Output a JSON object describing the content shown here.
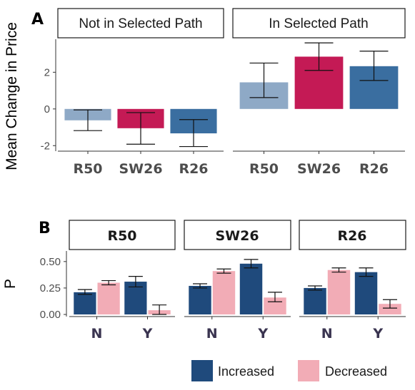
{
  "colors": {
    "R50_A": "#8ea9c6",
    "SW26_A": "#c41a55",
    "R26_A": "#3a6ea0",
    "Increased": "#1f4a7c",
    "Decreased": "#f2acb6"
  },
  "chart_data": [
    {
      "panel": "A",
      "type": "bar",
      "ylabel": "Mean Change in Price",
      "ylim": [
        -2.3,
        3.8
      ],
      "yticks": [
        -2,
        0,
        2
      ],
      "facets": [
        {
          "strip": "Not in Selected Path",
          "categories": [
            "R50",
            "SW26",
            "R26"
          ],
          "values": [
            -0.62,
            -1.05,
            -1.33
          ],
          "error_low": [
            -1.18,
            -1.92,
            -2.05
          ],
          "error_high": [
            -0.05,
            -0.2,
            -0.58
          ]
        },
        {
          "strip": "In Selected Path",
          "categories": [
            "R50",
            "SW26",
            "R26"
          ],
          "values": [
            1.45,
            2.85,
            2.33
          ],
          "error_low": [
            0.62,
            2.1,
            1.55
          ],
          "error_high": [
            2.5,
            3.6,
            3.15
          ]
        }
      ]
    },
    {
      "panel": "B",
      "type": "bar",
      "ylabel": "P",
      "ylim": [
        -0.02,
        0.6
      ],
      "yticks": [
        0.0,
        0.25,
        0.5
      ],
      "ytick_labels": [
        "0.00",
        "0.25",
        "0.50"
      ],
      "legend": {
        "position": "bottom",
        "entries": [
          "Increased",
          "Decreased"
        ]
      },
      "facets": [
        {
          "strip": "R50",
          "categories": [
            "N",
            "Y"
          ],
          "series": [
            {
              "name": "Increased",
              "values": [
                0.21,
                0.31
              ],
              "error_low": [
                0.19,
                0.26
              ],
              "error_high": [
                0.235,
                0.36
              ]
            },
            {
              "name": "Decreased",
              "values": [
                0.3,
                0.04
              ],
              "error_low": [
                0.28,
                0.0
              ],
              "error_high": [
                0.32,
                0.09
              ]
            }
          ]
        },
        {
          "strip": "SW26",
          "categories": [
            "N",
            "Y"
          ],
          "series": [
            {
              "name": "Increased",
              "values": [
                0.27,
                0.48
              ],
              "error_low": [
                0.25,
                0.44
              ],
              "error_high": [
                0.29,
                0.52
              ]
            },
            {
              "name": "Decreased",
              "values": [
                0.41,
                0.16
              ],
              "error_low": [
                0.39,
                0.12
              ],
              "error_high": [
                0.43,
                0.21
              ]
            }
          ]
        },
        {
          "strip": "R26",
          "categories": [
            "N",
            "Y"
          ],
          "series": [
            {
              "name": "Increased",
              "values": [
                0.25,
                0.4
              ],
              "error_low": [
                0.23,
                0.36
              ],
              "error_high": [
                0.27,
                0.44
              ]
            },
            {
              "name": "Decreased",
              "values": [
                0.42,
                0.1
              ],
              "error_low": [
                0.4,
                0.06
              ],
              "error_high": [
                0.44,
                0.14
              ]
            }
          ]
        }
      ]
    }
  ]
}
